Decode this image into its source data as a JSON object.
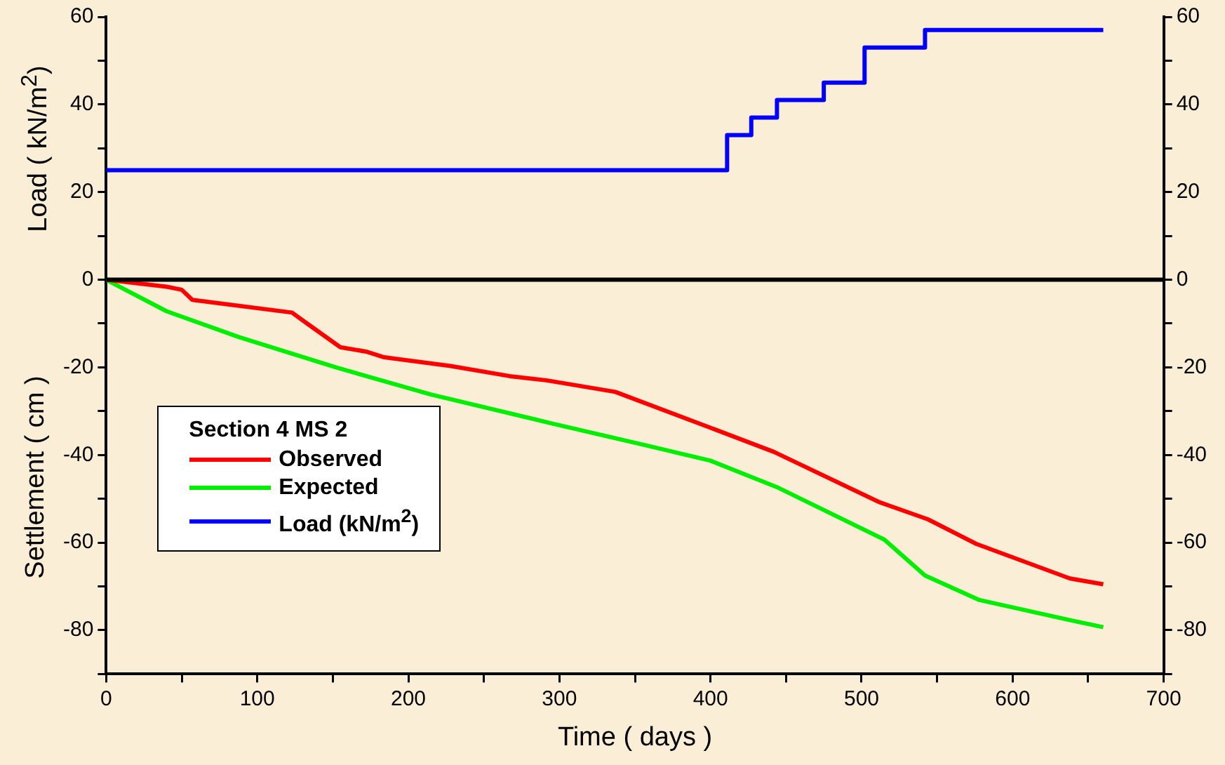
{
  "chart_data": {
    "type": "line",
    "xlabel": "Time ( days )",
    "ylabel": "Settlement ( cm )",
    "legend_title": "Section 4 MS 2",
    "annotations": [
      "Load ( kN/m$^{2}$)"
    ],
    "xlim": [
      0,
      700
    ],
    "xticks": [
      0,
      {
        "value": 50,
        "label": null
      },
      100,
      {
        "value": 150,
        "label": null
      },
      200,
      {
        "value": 250,
        "label": null
      },
      300,
      {
        "value": 350,
        "label": null
      },
      400,
      {
        "value": 450,
        "label": null
      },
      500,
      {
        "value": 550,
        "label": null
      },
      600,
      {
        "value": 650,
        "label": null
      },
      700
    ],
    "ylim": [
      -90,
      60
    ],
    "yticks": [
      {
        "value": -90,
        "label": null
      },
      -80,
      {
        "value": -70,
        "label": null
      },
      -60,
      {
        "value": -50,
        "label": null
      },
      -40,
      {
        "value": -30,
        "label": null
      },
      -20,
      {
        "value": -10,
        "label": null
      },
      0,
      {
        "value": 10,
        "label": null
      },
      20,
      {
        "value": 30,
        "label": null
      },
      40,
      {
        "value": 50,
        "label": null
      },
      60
    ],
    "y2lim": [
      -90,
      60
    ],
    "y2ticks": [
      {
        "value": -90,
        "label": null
      },
      -80,
      {
        "value": -70,
        "label": null
      },
      -60,
      {
        "value": -50,
        "label": null
      },
      -40,
      {
        "value": -30,
        "label": null
      },
      -20,
      {
        "value": -10,
        "label": null
      },
      0,
      {
        "value": 10,
        "label": null
      },
      20,
      {
        "value": 30,
        "label": null
      },
      40,
      {
        "value": 50,
        "label": null
      },
      60
    ],
    "grid": false,
    "legend": "left",
    "marker": "none",
    "line_style": "solid",
    "ref_lines": [
      {
        "axis": "y",
        "value": 0,
        "color": "#000000"
      }
    ],
    "series": [
      {
        "name": "Observed",
        "color": "#ff0000",
        "x": [
          0,
          40,
          50,
          57,
          123,
          133,
          155,
          172,
          184,
          228,
          267,
          292,
          337,
          400,
          442,
          512,
          544,
          576,
          638,
          660
        ],
        "values": [
          0,
          -1.6,
          -2.3,
          -4.6,
          -7.5,
          -10,
          -15.4,
          -16.4,
          -17.7,
          -19.7,
          -22,
          -23,
          -25.6,
          -33.8,
          -39.3,
          -50.8,
          -54.7,
          -60.3,
          -68.2,
          -69.5
        ]
      },
      {
        "name": "Expected",
        "color": "#00ee00",
        "x": [
          0,
          40,
          88,
          152,
          215,
          295,
          356,
          400,
          445,
          515,
          542,
          578,
          638,
          660
        ],
        "values": [
          0,
          -7.2,
          -13.1,
          -20,
          -26.2,
          -32.8,
          -37.7,
          -41.3,
          -47.5,
          -59.3,
          -67.5,
          -73.1,
          -77.7,
          -79.3
        ]
      },
      {
        "name": "Load (kN/m$^{2}$)",
        "type": "step",
        "color": "#0000ff",
        "x": [
          0,
          411,
          427,
          444,
          475,
          502,
          542,
          660
        ],
        "values": [
          25,
          33,
          37,
          41,
          45,
          53,
          57,
          57
        ]
      }
    ]
  }
}
